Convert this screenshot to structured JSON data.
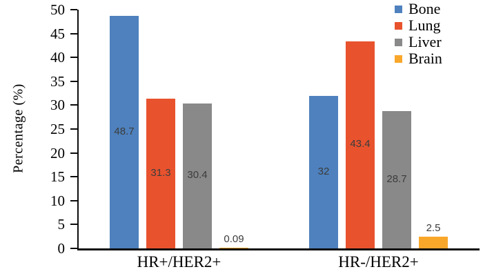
{
  "chart_data": {
    "type": "bar",
    "title": "",
    "ylabel": "Percentage (%)",
    "xlabel": "",
    "categories": [
      "HR+/HER2+",
      "HR-/HER2+"
    ],
    "series": [
      {
        "name": "Bone",
        "color": "#4E81BD",
        "values": [
          48.7,
          32
        ]
      },
      {
        "name": "Lung",
        "color": "#E8532E",
        "values": [
          31.3,
          43.4
        ]
      },
      {
        "name": "Liver",
        "color": "#898989",
        "values": [
          30.4,
          28.7
        ]
      },
      {
        "name": "Brain",
        "color": "#F9A72B",
        "values": [
          0.09,
          2.5
        ]
      }
    ],
    "value_labels": [
      [
        "48.7",
        "31.3",
        "30.4",
        "0.09"
      ],
      [
        "32",
        "43.4",
        "28.7",
        "2.5"
      ]
    ],
    "ylim": [
      0,
      50
    ],
    "yticks": [
      0,
      5,
      10,
      15,
      20,
      25,
      30,
      35,
      40,
      45,
      50
    ],
    "grid": false,
    "legend_position": "top-right",
    "value_label_color": "#3c3c3c",
    "axis_color": "#0b0b0b"
  }
}
